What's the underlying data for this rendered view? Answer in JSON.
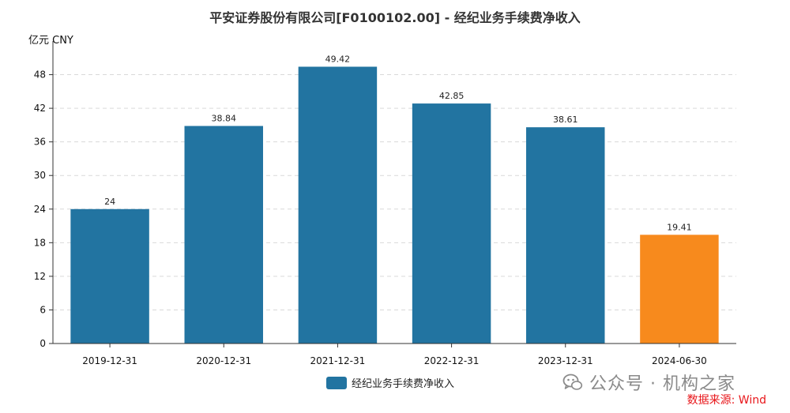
{
  "colors": {
    "bar": "#2274a1",
    "highlight": "#f78a1d",
    "grid": "#d9d9d9",
    "axis": "#333333",
    "source": "#e8161a"
  },
  "watermark": {
    "icon": "wechat-icon",
    "text": "公众号 · 机构之家"
  },
  "source_note": "数据来源: Wind",
  "chart_data": {
    "type": "bar",
    "title": "平安证券股份有限公司[F0100102.00] - 经纪业务手续费净收入",
    "unit_label": "亿元  CNY",
    "xlabel": "",
    "ylabel": "",
    "categories": [
      "2019-12-31",
      "2020-12-31",
      "2021-12-31",
      "2022-12-31",
      "2023-12-31",
      "2024-06-30"
    ],
    "series": [
      {
        "name": "经纪业务手续费净收入",
        "values": [
          24,
          38.84,
          49.42,
          42.85,
          38.61,
          19.41
        ],
        "data_labels": [
          "24",
          "38.84",
          "49.42",
          "42.85",
          "38.61",
          "19.41"
        ]
      }
    ],
    "highlight_index": 5,
    "ylim": [
      0,
      54
    ],
    "yticks": [
      0,
      6,
      12,
      18,
      24,
      30,
      36,
      42,
      48
    ],
    "grid": true,
    "legend": "bottom-center"
  }
}
